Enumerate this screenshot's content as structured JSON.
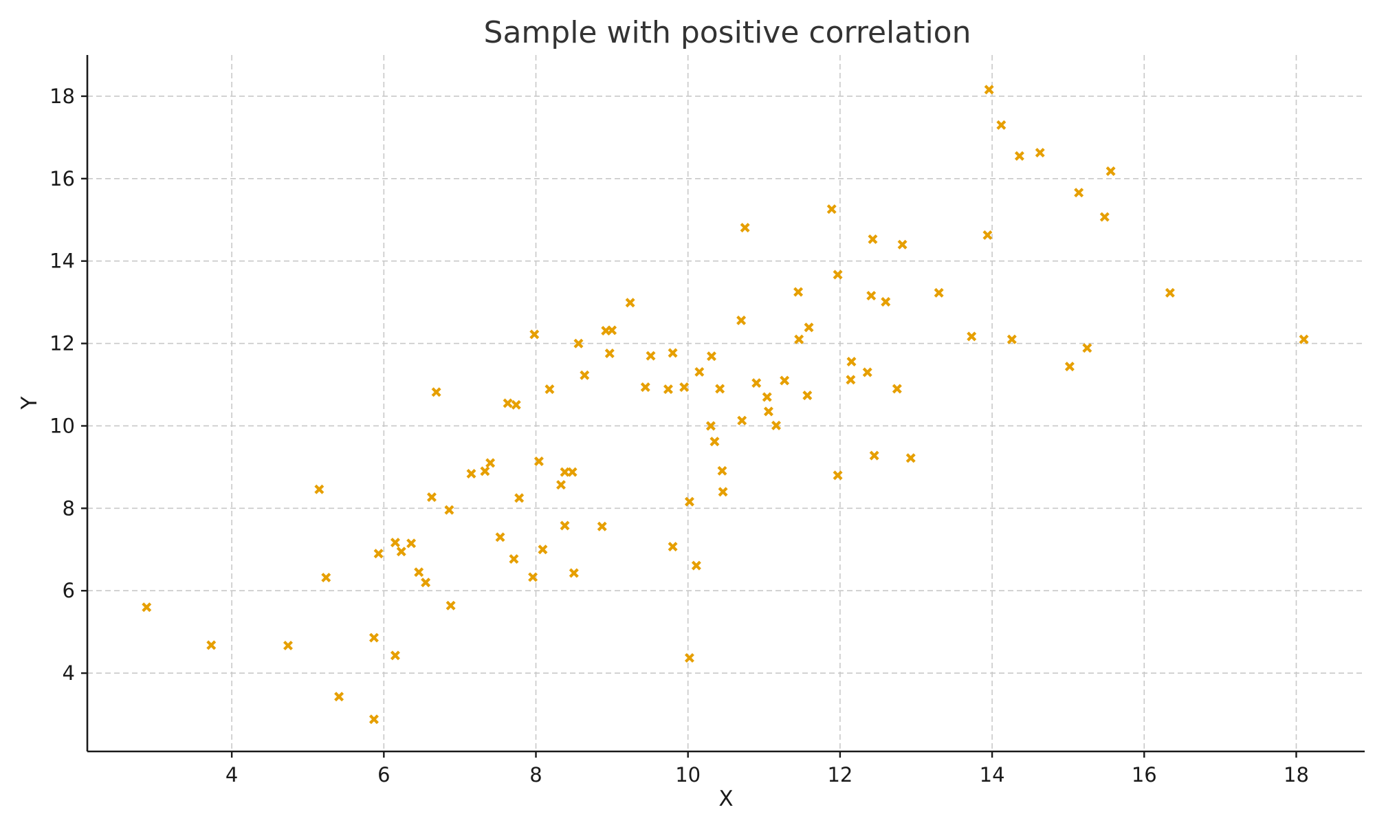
{
  "chart_data": {
    "type": "scatter",
    "title": "Sample with positive correlation",
    "xlabel": "X",
    "ylabel": "Y",
    "xlim": [
      2.1,
      18.9
    ],
    "ylim": [
      2.1,
      19.0
    ],
    "xticks": [
      4,
      6,
      8,
      10,
      12,
      14,
      16,
      18
    ],
    "yticks": [
      4,
      6,
      8,
      10,
      12,
      14,
      16,
      18
    ],
    "grid": true,
    "marker": "x",
    "color": "#E69F00",
    "points": [
      [
        2.88,
        5.6
      ],
      [
        3.73,
        4.68
      ],
      [
        4.74,
        4.67
      ],
      [
        5.15,
        8.46
      ],
      [
        5.24,
        6.32
      ],
      [
        5.41,
        3.43
      ],
      [
        5.87,
        4.86
      ],
      [
        5.87,
        2.88
      ],
      [
        5.93,
        6.9
      ],
      [
        6.15,
        7.17
      ],
      [
        6.15,
        4.43
      ],
      [
        6.23,
        6.95
      ],
      [
        6.36,
        7.15
      ],
      [
        6.46,
        6.45
      ],
      [
        6.55,
        6.2
      ],
      [
        6.63,
        8.27
      ],
      [
        6.69,
        10.82
      ],
      [
        6.86,
        7.96
      ],
      [
        6.88,
        5.64
      ],
      [
        7.15,
        8.84
      ],
      [
        7.33,
        8.9
      ],
      [
        7.4,
        9.1
      ],
      [
        7.53,
        7.3
      ],
      [
        7.63,
        10.55
      ],
      [
        7.71,
        6.77
      ],
      [
        7.74,
        10.51
      ],
      [
        7.78,
        8.25
      ],
      [
        7.96,
        6.33
      ],
      [
        7.98,
        12.22
      ],
      [
        8.04,
        9.14
      ],
      [
        8.09,
        7.0
      ],
      [
        8.18,
        10.89
      ],
      [
        8.33,
        8.57
      ],
      [
        8.38,
        8.88
      ],
      [
        8.38,
        7.58
      ],
      [
        8.48,
        8.88
      ],
      [
        8.5,
        6.43
      ],
      [
        8.56,
        12.0
      ],
      [
        8.64,
        11.23
      ],
      [
        8.87,
        7.56
      ],
      [
        8.92,
        12.31
      ],
      [
        8.97,
        11.76
      ],
      [
        9.0,
        12.32
      ],
      [
        9.24,
        12.99
      ],
      [
        9.44,
        10.94
      ],
      [
        9.51,
        11.7
      ],
      [
        9.74,
        10.89
      ],
      [
        9.8,
        7.07
      ],
      [
        9.8,
        11.77
      ],
      [
        9.95,
        10.94
      ],
      [
        10.02,
        8.16
      ],
      [
        10.02,
        4.37
      ],
      [
        10.11,
        6.61
      ],
      [
        10.15,
        11.31
      ],
      [
        10.3,
        10.0
      ],
      [
        10.31,
        11.69
      ],
      [
        10.35,
        9.62
      ],
      [
        10.42,
        10.9
      ],
      [
        10.45,
        8.91
      ],
      [
        10.46,
        8.4
      ],
      [
        10.7,
        12.56
      ],
      [
        10.71,
        10.13
      ],
      [
        10.75,
        14.81
      ],
      [
        10.9,
        11.04
      ],
      [
        11.04,
        10.7
      ],
      [
        11.06,
        10.35
      ],
      [
        11.16,
        10.01
      ],
      [
        11.27,
        11.1
      ],
      [
        11.45,
        13.25
      ],
      [
        11.46,
        12.1
      ],
      [
        11.57,
        10.74
      ],
      [
        11.59,
        12.39
      ],
      [
        11.89,
        15.26
      ],
      [
        11.97,
        8.8
      ],
      [
        11.97,
        13.67
      ],
      [
        12.14,
        11.12
      ],
      [
        12.15,
        11.56
      ],
      [
        12.36,
        11.3
      ],
      [
        12.41,
        13.16
      ],
      [
        12.43,
        14.53
      ],
      [
        12.45,
        9.28
      ],
      [
        12.6,
        13.01
      ],
      [
        12.75,
        10.9
      ],
      [
        12.82,
        14.4
      ],
      [
        12.93,
        9.22
      ],
      [
        13.3,
        13.23
      ],
      [
        13.73,
        12.17
      ],
      [
        13.94,
        14.63
      ],
      [
        13.96,
        18.16
      ],
      [
        14.12,
        17.3
      ],
      [
        14.26,
        12.1
      ],
      [
        14.36,
        16.55
      ],
      [
        14.63,
        16.63
      ],
      [
        15.02,
        11.44
      ],
      [
        15.14,
        15.66
      ],
      [
        15.25,
        11.89
      ],
      [
        15.48,
        15.07
      ],
      [
        15.56,
        16.18
      ],
      [
        16.34,
        13.23
      ],
      [
        18.1,
        12.1
      ]
    ]
  }
}
